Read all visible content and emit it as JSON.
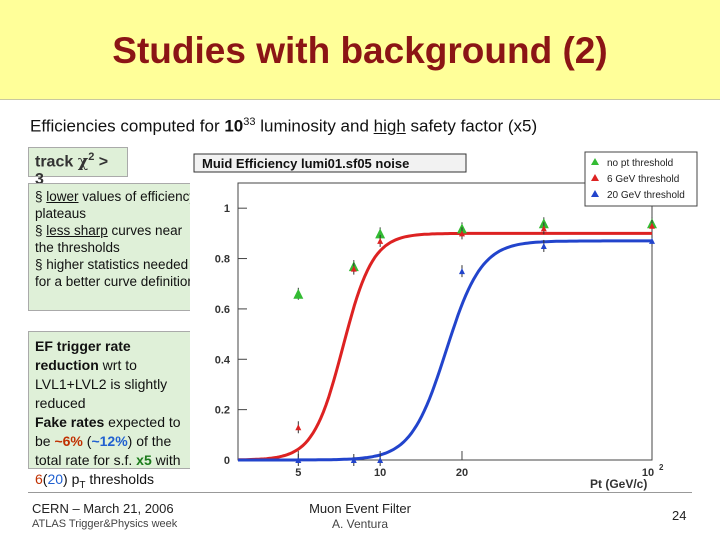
{
  "slide": {
    "title": "Studies with background (2)",
    "subtitle": {
      "pre": "Efficiencies computed for ",
      "lum": "10",
      "lum_exp": "33",
      "mid": " luminosity and ",
      "high": "high",
      "post": " safety factor (x5)"
    },
    "track_box": {
      "pre": "track ",
      "chi": "χ",
      "exp": "2",
      "post": " > 3"
    },
    "notes": {
      "b1_pre": "§ ",
      "b1_ul": "lower",
      "b1_post": " values of efficiency plateaus",
      "b2_pre": "§ ",
      "b2_ul": "less sharp",
      "b2_post": " curves near the thresholds",
      "b3": "§ higher statistics needed for a better curve definition"
    },
    "ef_box": {
      "l1": "EF trigger rate reduction",
      "l2": " wrt to LVL1+LVL2 is slightly reduced",
      "l3": "Fake rates",
      "l4": " expected to be ",
      "l5": "~6%",
      "l6": " (",
      "l7": "~12%",
      "l8": ") of the total rate for s.f. ",
      "l9": "x5",
      "l10": " with ",
      "l11": "6",
      "l12": "(",
      "l13": "20",
      "l14": ") p",
      "l15": "T",
      "l16": " thresholds"
    },
    "footer": {
      "cern": "CERN – March 21, 2006",
      "atlas": "ATLAS Trigger&Physics week",
      "muon": "Muon Event Filter",
      "author": "A. Ventura",
      "page": "24"
    }
  },
  "chart_data": {
    "type": "scatter",
    "title": "Muid Efficiency lumi01.sf05 noise",
    "xlabel": "Pt (GeV/c)",
    "x_scale": "log",
    "xlim": [
      3,
      100
    ],
    "ylim": [
      0,
      1.1
    ],
    "x_ticks": [
      5,
      10,
      20,
      100
    ],
    "x_tick_labels": [
      "5",
      "10",
      "20",
      "10^2"
    ],
    "y_ticks": [
      0,
      0.2,
      0.4,
      0.6,
      0.8,
      1
    ],
    "y_tick_labels": [
      "0",
      "0.2",
      "0.4",
      "0.6",
      "0.8",
      "1"
    ],
    "legend": [
      "no pt threshold",
      "6 GeV threshold",
      "20 GeV threshold"
    ],
    "legend_position": "top-right",
    "colors": {
      "no_pt": "#33bb33",
      "six": "#dd2222",
      "twenty": "#2244cc"
    },
    "series": [
      {
        "name": "no pt threshold",
        "x": [
          5,
          8,
          10,
          20,
          40,
          100
        ],
        "y": [
          0.66,
          0.77,
          0.9,
          0.92,
          0.94,
          0.94
        ]
      },
      {
        "name": "6 GeV threshold",
        "x": [
          5,
          8,
          10,
          20,
          40,
          100
        ],
        "y": [
          0.13,
          0.76,
          0.87,
          0.9,
          0.92,
          0.93
        ]
      },
      {
        "name": "20 GeV threshold",
        "x": [
          5,
          8,
          10,
          20,
          40,
          100
        ],
        "y": [
          0.0,
          0.0,
          0.0,
          0.75,
          0.85,
          0.87
        ]
      }
    ],
    "fit_curves": [
      {
        "series": "6 GeV threshold",
        "threshold": 7.3,
        "width": 0.055,
        "plateau": 0.9
      },
      {
        "series": "20 GeV threshold",
        "threshold": 17.5,
        "width": 0.065,
        "plateau": 0.87
      }
    ]
  }
}
